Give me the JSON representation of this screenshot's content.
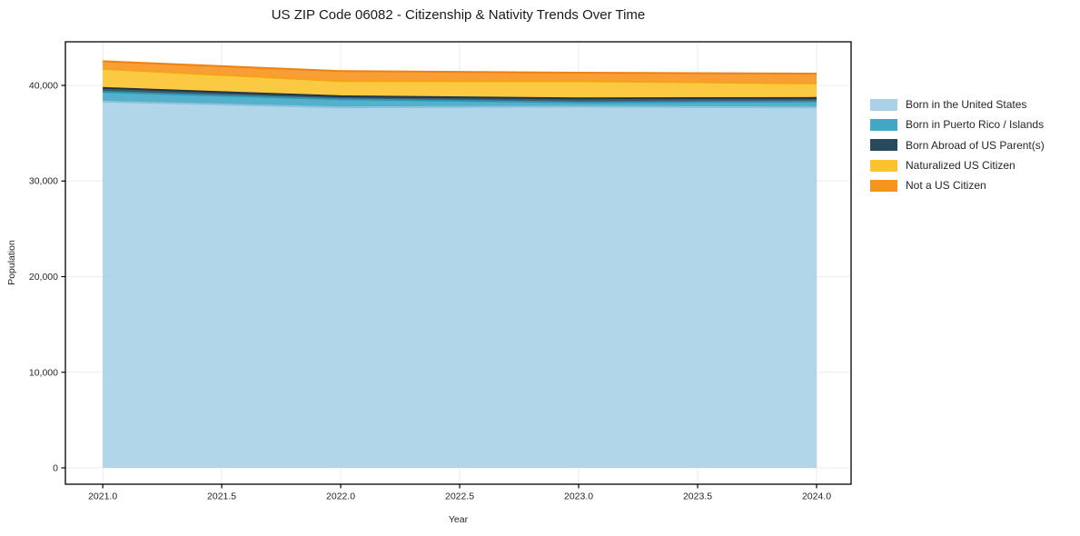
{
  "figure": {
    "background": "#ffffff",
    "frame_color": "#000000",
    "grid_color": "#ebebeb",
    "text_color": "#262626"
  },
  "chart_data": {
    "type": "area",
    "stacked": true,
    "title": "US ZIP Code 06082 - Citizenship & Nativity Trends Over Time",
    "xlabel": "Year",
    "ylabel": "Population",
    "x": [
      2021,
      2022,
      2023,
      2024
    ],
    "series": [
      {
        "name": "Born in the United States",
        "values": [
          38300,
          37700,
          37780,
          37690
        ],
        "color": "#a9d2e8",
        "edge_color": "#8cc2dc"
      },
      {
        "name": "Born in Puerto Rico / Islands",
        "values": [
          1020,
          850,
          440,
          620
        ],
        "color": "#41a9c5",
        "edge_color": "#2f97b4"
      },
      {
        "name": "Born Abroad of US Parent(s)",
        "values": [
          410,
          320,
          420,
          380
        ],
        "color": "#29495d",
        "edge_color": "#1d3747"
      },
      {
        "name": "Naturalized US Citizen",
        "values": [
          2000,
          1580,
          1800,
          1520
        ],
        "color": "#fcc32f",
        "edge_color": "#f4a316"
      },
      {
        "name": "Not a US Citizen",
        "values": [
          800,
          1050,
          890,
          1020
        ],
        "color": "#f7941e",
        "edge_color": "#ee8110"
      }
    ],
    "stack_totals": [
      42530,
      41500,
      41330,
      41230
    ],
    "xticks": {
      "values": [
        2021.0,
        2021.5,
        2022.0,
        2022.5,
        2023.0,
        2023.5,
        2024.0
      ],
      "labels": [
        "2021.0",
        "2021.5",
        "2022.0",
        "2022.5",
        "2023.0",
        "2023.5",
        "2024.0"
      ]
    },
    "yticks": {
      "values": [
        0,
        10000,
        20000,
        30000,
        40000
      ],
      "labels": [
        "0",
        "10,000",
        "20,000",
        "30,000",
        "40,000"
      ]
    },
    "xlim": [
      2020.843,
      2024.145
    ],
    "ylim": [
      -1710,
      44560
    ],
    "grid": true,
    "legend_position": "right-outside",
    "fill_opacity": 0.9
  }
}
